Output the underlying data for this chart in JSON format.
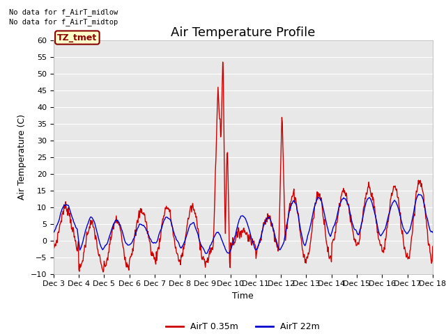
{
  "title": "Air Temperature Profile",
  "xlabel": "Time",
  "ylabel": "Air Temperature (C)",
  "ylim": [
    -10,
    60
  ],
  "xlim": [
    0,
    360
  ],
  "yticks": [
    -10,
    -5,
    0,
    5,
    10,
    15,
    20,
    25,
    30,
    35,
    40,
    45,
    50,
    55,
    60
  ],
  "xtick_labels": [
    "Dec 3",
    "Dec 4",
    "Dec 5",
    "Dec 6",
    "Dec 7",
    "Dec 8",
    "Dec 9",
    "Dec 10",
    "Dec 11",
    "Dec 12",
    "Dec 13",
    "Dec 14",
    "Dec 15",
    "Dec 16",
    "Dec 17",
    "Dec 18"
  ],
  "xtick_positions": [
    0,
    24,
    48,
    72,
    96,
    120,
    144,
    168,
    192,
    216,
    240,
    264,
    288,
    312,
    336,
    360
  ],
  "line1_color": "#cc0000",
  "line2_color": "#0000cc",
  "line1_label": "AirT 0.35m",
  "line2_label": "AirT 22m",
  "annotation1": "No data for f_AirT_midlow",
  "annotation2": "No data for f_AirT_midtop",
  "box_label": "TZ_tmet",
  "box_facecolor": "#ffffcc",
  "box_edgecolor": "#880000",
  "plot_bg": "#e8e8e8",
  "fig_bg": "#ffffff",
  "title_fontsize": 13,
  "axis_fontsize": 9,
  "tick_fontsize": 8,
  "linewidth": 1.0,
  "legend_fontsize": 9
}
